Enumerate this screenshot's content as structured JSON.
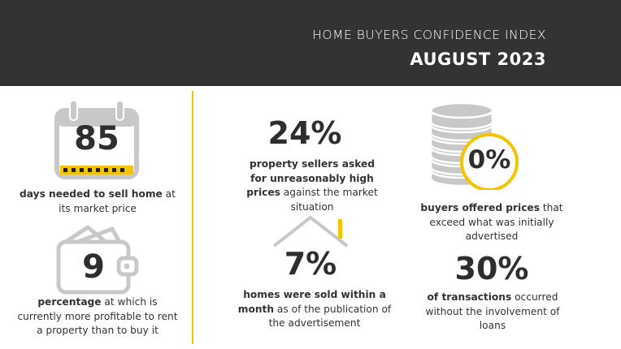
{
  "header": {
    "subtitle": "HOME BUYERS CONFIDENCE INDEX",
    "title": "AUGUST 2023"
  },
  "colors": {
    "header_bg": "#333333",
    "accent": "#f5c400",
    "icon_gray": "#c8c8c8",
    "text": "#2e2e2e"
  },
  "stats": {
    "days": {
      "value": "85",
      "icon": "calendar-icon",
      "bold": "days needed to sell home",
      "rest": " at its market price"
    },
    "rent": {
      "value": "9",
      "icon": "wallet-icon",
      "bold": "percentage",
      "rest": " at which is currently more profitable to rent a property than to buy it"
    },
    "sellers": {
      "value": "24%",
      "bold": "property sellers asked for unreasonably high prices",
      "rest": " against the market situation"
    },
    "homes": {
      "value": "7%",
      "icon": "house-roof-icon",
      "bold": "homes were sold within a month",
      "rest": " as of the publication of the advertisement"
    },
    "buyers": {
      "value": "0%",
      "icon": "coins-stack-icon",
      "bold": "buyers offered prices",
      "rest": " that exceed what was initially advertised"
    },
    "transactions": {
      "value": "30%",
      "bold": "of transactions",
      "rest": " occurred without the involvement of loans"
    }
  }
}
